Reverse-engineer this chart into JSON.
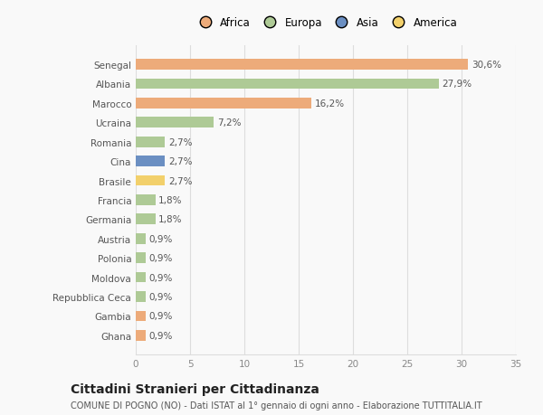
{
  "categories": [
    "Ghana",
    "Gambia",
    "Repubblica Ceca",
    "Moldova",
    "Polonia",
    "Austria",
    "Germania",
    "Francia",
    "Brasile",
    "Cina",
    "Romania",
    "Ucraina",
    "Marocco",
    "Albania",
    "Senegal"
  ],
  "values": [
    0.9,
    0.9,
    0.9,
    0.9,
    0.9,
    0.9,
    1.8,
    1.8,
    2.7,
    2.7,
    2.7,
    7.2,
    16.2,
    27.9,
    30.6
  ],
  "colors": [
    "#EDAB7A",
    "#EDAB7A",
    "#AECA96",
    "#AECA96",
    "#AECA96",
    "#AECA96",
    "#AECA96",
    "#AECA96",
    "#F2D06B",
    "#6B8FC2",
    "#AECA96",
    "#AECA96",
    "#EDAB7A",
    "#AECA96",
    "#EDAB7A"
  ],
  "labels": [
    "0,9%",
    "0,9%",
    "0,9%",
    "0,9%",
    "0,9%",
    "0,9%",
    "1,8%",
    "1,8%",
    "2,7%",
    "2,7%",
    "2,7%",
    "7,2%",
    "16,2%",
    "27,9%",
    "30,6%"
  ],
  "legend": [
    {
      "label": "Africa",
      "color": "#EDAB7A"
    },
    {
      "label": "Europa",
      "color": "#AECA96"
    },
    {
      "label": "Asia",
      "color": "#6B8FC2"
    },
    {
      "label": "America",
      "color": "#F2D06B"
    }
  ],
  "xlim": [
    0,
    35
  ],
  "xticks": [
    0,
    5,
    10,
    15,
    20,
    25,
    30,
    35
  ],
  "title": "Cittadini Stranieri per Cittadinanza",
  "subtitle": "COMUNE DI POGNO (NO) - Dati ISTAT al 1° gennaio di ogni anno - Elaborazione TUTTITALIA.IT",
  "bg_color": "#f9f9f9",
  "grid_color": "#dddddd",
  "bar_height": 0.55,
  "label_fontsize": 7.5,
  "tick_fontsize": 7.5,
  "title_fontsize": 10,
  "subtitle_fontsize": 7
}
